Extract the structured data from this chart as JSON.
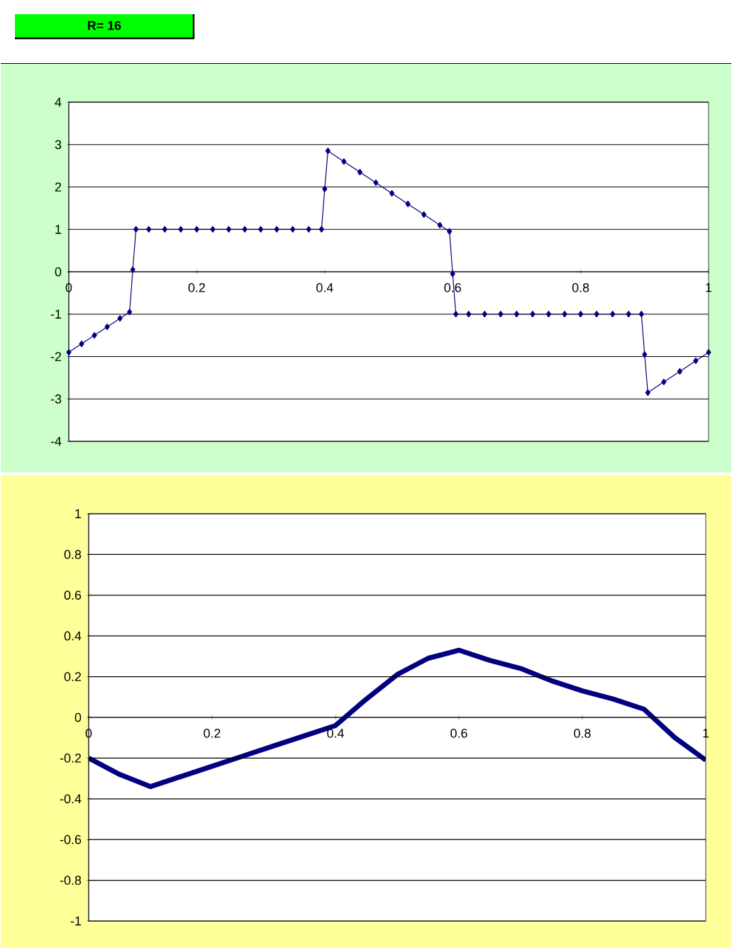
{
  "chart_data": [
    {
      "type": "line",
      "annotations": [
        "R= 16"
      ],
      "marker": "diamond",
      "line_style": "solid",
      "grid": "y",
      "xlim": [
        0,
        1
      ],
      "ylim": [
        -4,
        4
      ],
      "xticks": [
        0,
        0.2,
        0.4,
        0.6,
        0.8,
        1
      ],
      "yticks": [
        -4,
        -3,
        -2,
        -1,
        0,
        1,
        2,
        3,
        4
      ],
      "series": [
        {
          "color": "#000080",
          "x": [
            0,
            0.02,
            0.04,
            0.06,
            0.08,
            0.095,
            0.1,
            0.105,
            0.125,
            0.15,
            0.175,
            0.2,
            0.225,
            0.25,
            0.275,
            0.3,
            0.325,
            0.35,
            0.375,
            0.395,
            0.4,
            0.405,
            0.43,
            0.455,
            0.48,
            0.505,
            0.53,
            0.555,
            0.58,
            0.595,
            0.6,
            0.605,
            0.625,
            0.65,
            0.675,
            0.7,
            0.725,
            0.75,
            0.775,
            0.8,
            0.825,
            0.85,
            0.875,
            0.895,
            0.9,
            0.905,
            0.93,
            0.955,
            0.98,
            1
          ],
          "values": [
            -1.9,
            -1.7,
            -1.5,
            -1.3,
            -1.1,
            -0.95,
            0.05,
            1,
            1,
            1,
            1,
            1,
            1,
            1,
            1,
            1,
            1,
            1,
            1,
            1,
            1.95,
            2.85,
            2.6,
            2.35,
            2.1,
            1.85,
            1.6,
            1.35,
            1.1,
            0.95,
            -0.05,
            -1,
            -1,
            -1,
            -1,
            -1,
            -1,
            -1,
            -1,
            -1,
            -1,
            -1,
            -1,
            -1,
            -1.95,
            -2.85,
            -2.6,
            -2.35,
            -2.1,
            -1.9
          ]
        }
      ]
    },
    {
      "type": "line",
      "marker": "none",
      "line_style": "solid",
      "grid": "y",
      "xlim": [
        0,
        1
      ],
      "ylim": [
        -1,
        1
      ],
      "xticks": [
        0,
        0.2,
        0.4,
        0.6,
        0.8,
        1
      ],
      "yticks": [
        -1,
        -0.8,
        -0.6,
        -0.4,
        -0.2,
        0,
        0.2,
        0.4,
        0.6,
        0.8,
        1
      ],
      "series": [
        {
          "color": "#000080",
          "x": [
            0,
            0.05,
            0.1,
            0.15,
            0.2,
            0.25,
            0.3,
            0.35,
            0.4,
            0.45,
            0.5,
            0.55,
            0.6,
            0.65,
            0.7,
            0.75,
            0.8,
            0.85,
            0.9,
            0.95,
            1
          ],
          "values": [
            -0.2,
            -0.28,
            -0.34,
            -0.29,
            -0.24,
            -0.19,
            -0.14,
            -0.09,
            -0.04,
            0.09,
            0.21,
            0.29,
            0.33,
            0.28,
            0.24,
            0.18,
            0.13,
            0.09,
            0.04,
            -0.1,
            -0.21
          ]
        }
      ]
    }
  ]
}
